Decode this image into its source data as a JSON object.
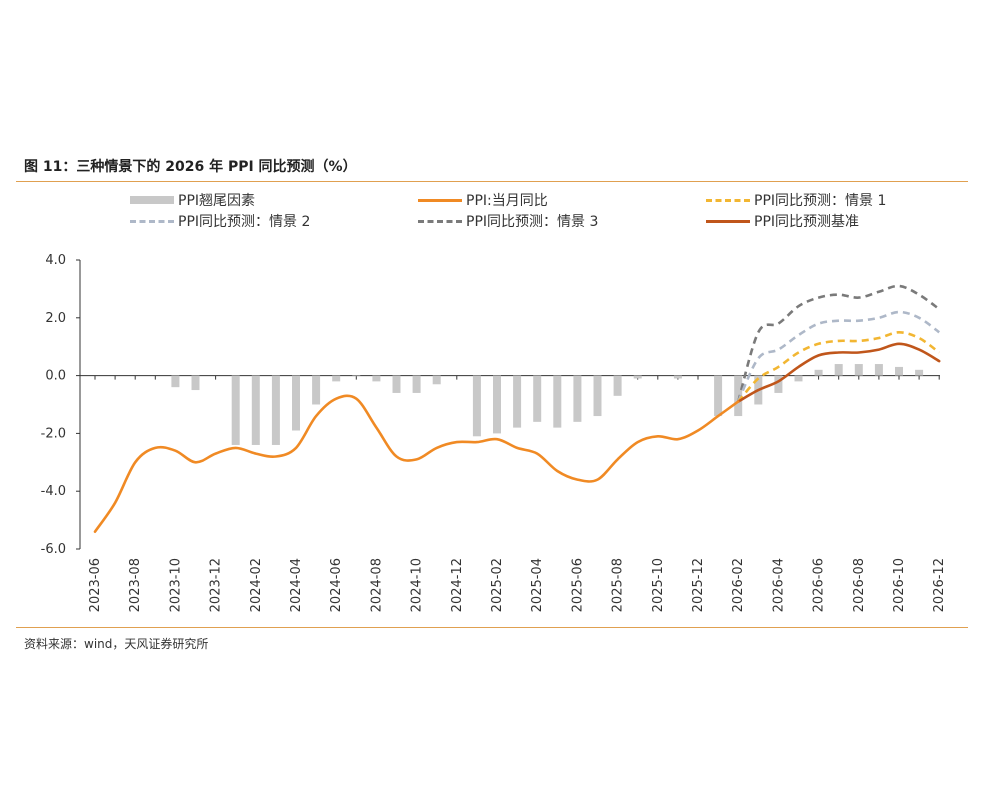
{
  "header": {
    "title": "图 11：三种情景下的 2026 年 PPI 同比预测（%）"
  },
  "footer": {
    "source": "资料来源：wind，天风证券研究所"
  },
  "chart_data": {
    "type": "line",
    "title": "三种情景下的 2026 年 PPI 同比预测（%）",
    "ylim": [
      -6.0,
      4.0
    ],
    "yticks": [
      "4.0",
      "2.0",
      "0.0",
      "-2.0",
      "-4.0",
      "-6.0"
    ],
    "months": [
      "2023-06",
      "2023-07",
      "2023-08",
      "2023-09",
      "2023-10",
      "2023-11",
      "2023-12",
      "2024-01",
      "2024-02",
      "2024-03",
      "2024-04",
      "2024-05",
      "2024-06",
      "2024-07",
      "2024-08",
      "2024-09",
      "2024-10",
      "2024-11",
      "2024-12",
      "2025-01",
      "2025-02",
      "2025-03",
      "2025-04",
      "2025-05",
      "2025-06",
      "2025-07",
      "2025-08",
      "2025-09",
      "2025-10",
      "2025-11",
      "2025-12",
      "2026-01",
      "2026-02",
      "2026-03",
      "2026-04",
      "2026-05",
      "2026-06",
      "2026-07",
      "2026-08",
      "2026-09",
      "2026-10",
      "2026-11",
      "2026-12"
    ],
    "xtick_labels": [
      "2023-06",
      "2023-08",
      "2023-10",
      "2023-12",
      "2024-02",
      "2024-04",
      "2024-06",
      "2024-08",
      "2024-10",
      "2024-12",
      "2025-02",
      "2025-04",
      "2025-06",
      "2025-08",
      "2025-10",
      "2025-12",
      "2026-02",
      "2026-04",
      "2026-06",
      "2026-08",
      "2026-10",
      "2026-12"
    ],
    "legend": [
      {
        "name": "PPI翘尾因素",
        "style": "bar",
        "color": "#C8C8C8"
      },
      {
        "name": "PPI:当月同比",
        "style": "solid",
        "color": "#F08A24"
      },
      {
        "name": "PPI同比预测：情景 1",
        "style": "dashed",
        "color": "#F2B632"
      },
      {
        "name": "PPI同比预测：情景 2",
        "style": "dashed",
        "color": "#AEB8C8"
      },
      {
        "name": "PPI同比预测：情景 3",
        "style": "dashed",
        "color": "#7A7A7A"
      },
      {
        "name": "PPI同比预测基准",
        "style": "solid",
        "color": "#C0561B"
      }
    ],
    "series": [
      {
        "name": "PPI翘尾因素",
        "type": "bar",
        "color": "#C8C8C8",
        "start": "2023-06",
        "values": [
          null,
          null,
          null,
          null,
          -0.4,
          -0.5,
          null,
          -2.4,
          -2.4,
          -2.4,
          -1.9,
          -1.0,
          -0.2,
          0,
          -0.2,
          -0.6,
          -0.6,
          -0.3,
          null,
          -2.1,
          -2.0,
          -1.8,
          -1.6,
          -1.8,
          -1.6,
          -1.4,
          -0.7,
          -0.1,
          null,
          -0.1,
          null,
          -1.4,
          -1.4,
          -1.0,
          -0.6,
          -0.2,
          0.2,
          0.4,
          0.4,
          0.4,
          0.3,
          0.2,
          null
        ]
      },
      {
        "name": "PPI:当月同比",
        "type": "line",
        "color": "#F08A24",
        "start": "2023-06",
        "values": [
          -5.4,
          -4.4,
          -3.0,
          -2.5,
          -2.6,
          -3.0,
          -2.7,
          -2.5,
          -2.7,
          -2.8,
          -2.5,
          -1.4,
          -0.8,
          -0.8,
          -1.8,
          -2.8,
          -2.9,
          -2.5,
          -2.3,
          -2.3,
          -2.2,
          -2.5,
          -2.7,
          -3.3,
          -3.6,
          -3.6,
          -2.9,
          -2.3,
          -2.1,
          -2.2,
          -1.9,
          -1.4,
          -0.9
        ]
      },
      {
        "name": "PPI同比预测：情景 1",
        "type": "line",
        "color": "#F2B632",
        "start": "2026-02",
        "values": [
          -0.9,
          -0.1,
          0.3,
          0.8,
          1.1,
          1.2,
          1.2,
          1.3,
          1.5,
          1.3,
          0.8
        ]
      },
      {
        "name": "PPI同比预测：情景 2",
        "type": "line",
        "color": "#AEB8C8",
        "start": "2026-02",
        "values": [
          -0.9,
          0.6,
          0.9,
          1.4,
          1.8,
          1.9,
          1.9,
          2.0,
          2.2,
          2.0,
          1.5
        ]
      },
      {
        "name": "PPI同比预测：情景 3",
        "type": "line",
        "color": "#7A7A7A",
        "start": "2026-02",
        "values": [
          -0.9,
          1.5,
          1.8,
          2.4,
          2.7,
          2.8,
          2.7,
          2.9,
          3.1,
          2.8,
          2.3
        ]
      },
      {
        "name": "PPI同比预测基准",
        "type": "line",
        "color": "#C0561B",
        "start": "2026-02",
        "values": [
          -0.9,
          -0.5,
          -0.2,
          0.3,
          0.7,
          0.8,
          0.8,
          0.9,
          1.1,
          0.9,
          0.5
        ]
      }
    ]
  }
}
